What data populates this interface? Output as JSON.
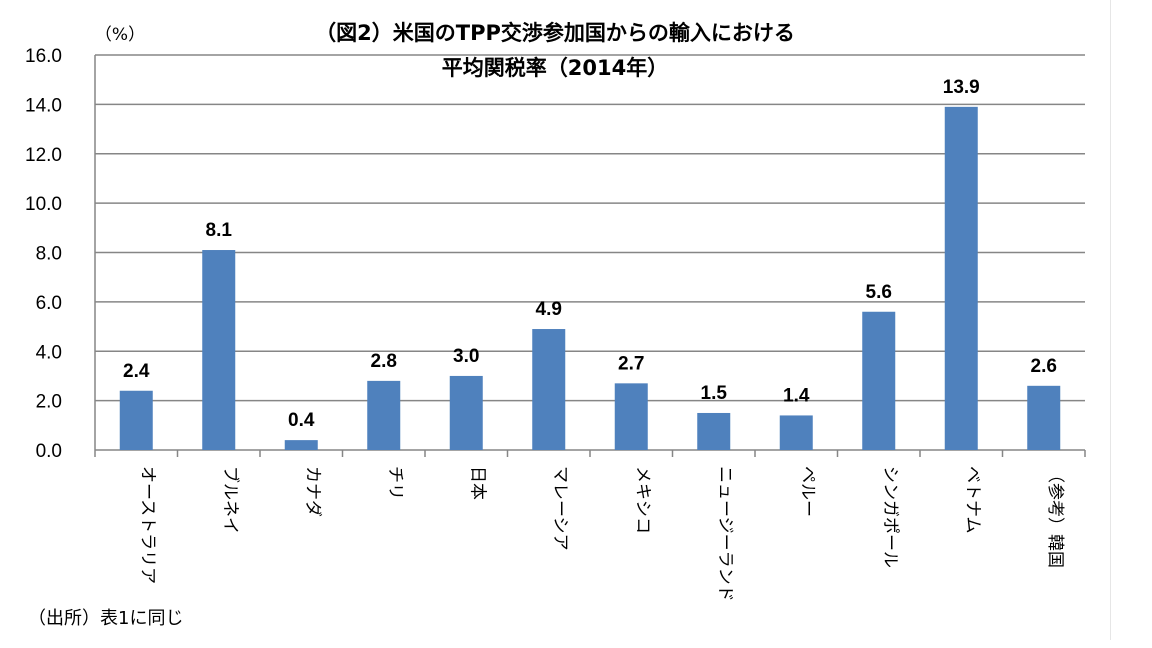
{
  "chart_data": {
    "type": "bar",
    "title": "（図2）米国のTPP交渉参加国からの輸入における",
    "subtitle": "平均関税率（2014年）",
    "unit_label": "（%）",
    "ylabel_vertical": "",
    "source": "（出所）表1に同じ",
    "categories": [
      "オーストラリア",
      "ブルネイ",
      "カナダ",
      "チリ",
      "日本",
      "マレーシア",
      "メキシコ",
      "ニュージーランド",
      "ペルー",
      "シンガポール",
      "ベトナム",
      "（参考）韓国"
    ],
    "values": [
      2.4,
      8.1,
      0.4,
      2.8,
      3.0,
      4.9,
      2.7,
      1.5,
      1.4,
      5.6,
      13.9,
      2.6
    ],
    "data_labels": [
      "2.4",
      "8.1",
      "0.4",
      "2.8",
      "3.0",
      "4.9",
      "2.7",
      "1.5",
      "1.4",
      "5.6",
      "13.9",
      "2.6"
    ],
    "yticks": [
      "0.0",
      "2.0",
      "4.0",
      "6.0",
      "8.0",
      "10.0",
      "12.0",
      "14.0",
      "16.0"
    ],
    "ylim": [
      0,
      16
    ],
    "grid": true,
    "bar_color": "#4f81bd",
    "grid_color": "#868686"
  }
}
